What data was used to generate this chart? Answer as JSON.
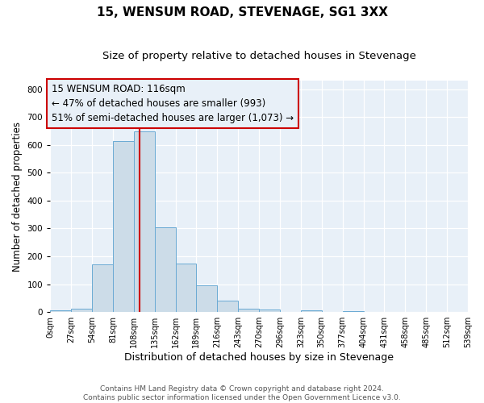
{
  "title": "15, WENSUM ROAD, STEVENAGE, SG1 3XX",
  "subtitle": "Size of property relative to detached houses in Stevenage",
  "xlabel": "Distribution of detached houses by size in Stevenage",
  "ylabel": "Number of detached properties",
  "bin_edges": [
    0,
    27,
    54,
    81,
    108,
    135,
    162,
    189,
    216,
    243,
    270,
    297,
    324,
    351,
    378,
    405,
    432,
    459,
    486,
    513,
    540
  ],
  "bar_heights": [
    5,
    12,
    170,
    615,
    650,
    305,
    173,
    97,
    40,
    13,
    8,
    0,
    5,
    0,
    3,
    0,
    0,
    0,
    0,
    2
  ],
  "bar_color": "#ccdce8",
  "bar_edge_color": "#6aaad4",
  "property_size": 116,
  "vline_color": "#cc0000",
  "annotation_line1": "15 WENSUM ROAD: 116sqm",
  "annotation_line2": "← 47% of detached houses are smaller (993)",
  "annotation_line3": "51% of semi-detached houses are larger (1,073) →",
  "annotation_box_edge": "#cc0000",
  "annotation_fontsize": 8.5,
  "ylim": [
    0,
    830
  ],
  "xlim": [
    0,
    540
  ],
  "yticks": [
    0,
    100,
    200,
    300,
    400,
    500,
    600,
    700,
    800
  ],
  "tick_labels": [
    "0sqm",
    "27sqm",
    "54sqm",
    "81sqm",
    "108sqm",
    "135sqm",
    "162sqm",
    "189sqm",
    "216sqm",
    "243sqm",
    "270sqm",
    "296sqm",
    "323sqm",
    "350sqm",
    "377sqm",
    "404sqm",
    "431sqm",
    "458sqm",
    "485sqm",
    "512sqm",
    "539sqm"
  ],
  "footer_line1": "Contains HM Land Registry data © Crown copyright and database right 2024.",
  "footer_line2": "Contains public sector information licensed under the Open Government Licence v3.0.",
  "background_color": "#ffffff",
  "plot_bg_color": "#e8f0f8",
  "grid_color": "#ffffff",
  "title_fontsize": 11,
  "subtitle_fontsize": 9.5,
  "xlabel_fontsize": 9,
  "ylabel_fontsize": 8.5,
  "tick_fontsize": 7,
  "footer_fontsize": 6.5
}
